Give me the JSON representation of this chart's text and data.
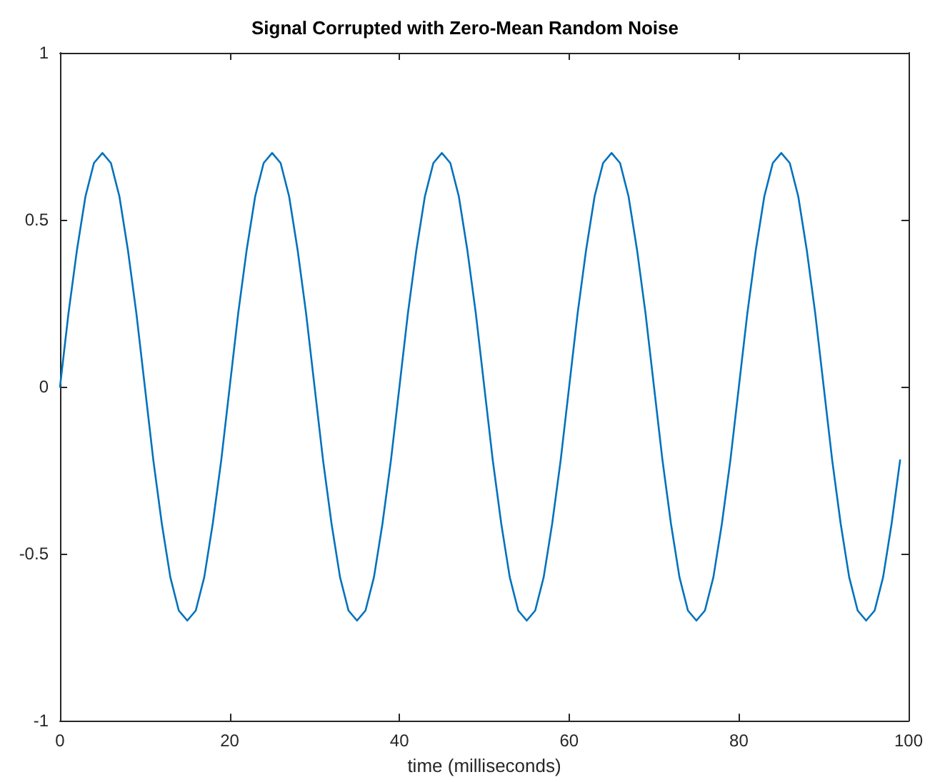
{
  "chart_data": {
    "type": "line",
    "title": "Signal Corrupted with Zero-Mean Random Noise",
    "xlabel": "time (milliseconds)",
    "x": [
      0,
      1,
      2,
      3,
      4,
      5,
      6,
      7,
      8,
      9,
      10,
      11,
      12,
      13,
      14,
      15,
      16,
      17,
      18,
      19,
      20,
      21,
      22,
      23,
      24,
      25,
      26,
      27,
      28,
      29,
      30,
      31,
      32,
      33,
      34,
      35,
      36,
      37,
      38,
      39,
      40,
      41,
      42,
      43,
      44,
      45,
      46,
      47,
      48,
      49,
      50,
      51,
      52,
      53,
      54,
      55,
      56,
      57,
      58,
      59,
      60,
      61,
      62,
      63,
      64,
      65,
      66,
      67,
      68,
      69,
      70,
      71,
      72,
      73,
      74,
      75,
      76,
      77,
      78,
      79,
      80,
      81,
      82,
      83,
      84,
      85,
      86,
      87,
      88,
      89,
      90,
      91,
      92,
      93,
      94,
      95,
      96,
      97,
      98,
      99
    ],
    "series": [
      {
        "color": "#0072bd",
        "values": [
          0,
          0.22,
          0.41,
          0.57,
          0.67,
          0.7,
          0.67,
          0.57,
          0.41,
          0.22,
          0,
          -0.22,
          -0.41,
          -0.57,
          -0.67,
          -0.7,
          -0.67,
          -0.57,
          -0.41,
          -0.22,
          0,
          0.22,
          0.41,
          0.57,
          0.67,
          0.7,
          0.67,
          0.57,
          0.41,
          0.22,
          0,
          -0.22,
          -0.41,
          -0.57,
          -0.67,
          -0.7,
          -0.67,
          -0.57,
          -0.41,
          -0.22,
          0,
          0.22,
          0.41,
          0.57,
          0.67,
          0.7,
          0.67,
          0.57,
          0.41,
          0.22,
          0,
          -0.22,
          -0.41,
          -0.57,
          -0.67,
          -0.7,
          -0.67,
          -0.57,
          -0.41,
          -0.22,
          0,
          0.22,
          0.41,
          0.57,
          0.67,
          0.7,
          0.67,
          0.57,
          0.41,
          0.22,
          0,
          -0.22,
          -0.41,
          -0.57,
          -0.67,
          -0.7,
          -0.67,
          -0.57,
          -0.41,
          -0.22,
          0,
          0.22,
          0.41,
          0.57,
          0.67,
          0.7,
          0.67,
          0.57,
          0.41,
          0.22,
          0,
          -0.22,
          -0.41,
          -0.57,
          -0.67,
          -0.7,
          -0.67,
          -0.57,
          -0.41,
          -0.22
        ]
      }
    ],
    "xlim": [
      0,
      100
    ],
    "xticks": [
      0,
      20,
      40,
      60,
      80,
      100
    ],
    "ylim": [
      -1,
      1
    ],
    "yticks": [
      -1,
      -0.5,
      0,
      0.5,
      1
    ],
    "grid": false,
    "marker": "none",
    "line_style": "solid"
  }
}
